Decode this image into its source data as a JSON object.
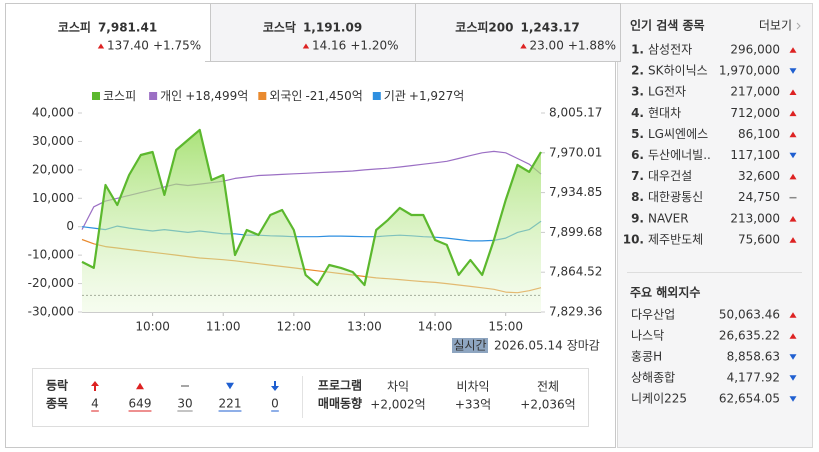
{
  "tabs": [
    {
      "name": "코스피",
      "value": "7,981.41",
      "change": "137.40",
      "rate": "+1.75%",
      "direction": "up",
      "active": true
    },
    {
      "name": "코스닥",
      "value": "1,191.09",
      "change": "14.16",
      "rate": "+1.20%",
      "direction": "up",
      "active": false
    },
    {
      "name": "코스피200",
      "value": "1,243.17",
      "change": "23.00",
      "rate": "+1.88%",
      "direction": "up",
      "active": false
    }
  ],
  "chart_data": {
    "type": "line",
    "x": [
      "09:00",
      "09:10",
      "09:20",
      "09:30",
      "09:40",
      "09:50",
      "10:00",
      "10:10",
      "10:20",
      "10:30",
      "10:40",
      "10:50",
      "11:00",
      "11:10",
      "11:20",
      "11:30",
      "11:40",
      "11:50",
      "12:00",
      "12:10",
      "12:20",
      "12:30",
      "12:40",
      "12:50",
      "13:00",
      "13:10",
      "13:20",
      "13:30",
      "13:40",
      "13:50",
      "14:00",
      "14:10",
      "14:20",
      "14:30",
      "14:40",
      "14:50",
      "15:00",
      "15:10",
      "15:20",
      "15:30"
    ],
    "xlim": [
      "09:00",
      "15:30"
    ],
    "xticks": [
      "10:00",
      "11:00",
      "12:00",
      "13:00",
      "14:00",
      "15:00"
    ],
    "ylim": [
      -30000,
      40000
    ],
    "yticks": [
      {
        "value": 40000,
        "label": "40,000"
      },
      {
        "value": 30000,
        "label": "30,000"
      },
      {
        "value": 20000,
        "label": "20,000"
      },
      {
        "value": 10000,
        "label": "10,000"
      },
      0,
      {
        "value": -10000,
        "label": "-10,000"
      },
      {
        "value": -20000,
        "label": "-20,000"
      },
      {
        "value": -30000,
        "label": "-30,000"
      }
    ],
    "y2lim": [
      7829.36,
      8005.17
    ],
    "y2ticks": [
      {
        "value": 8005.17,
        "label": "8,005.17"
      },
      {
        "value": 7970.01,
        "label": "7,970.01"
      },
      {
        "value": 7934.85,
        "label": "7,934.85"
      },
      {
        "value": 7899.68,
        "label": "7,899.68"
      },
      {
        "value": 7864.52,
        "label": "7,864.52"
      },
      {
        "value": 7829.36,
        "label": "7,829.36"
      }
    ],
    "y2_reference": 7844.01,
    "grid": false,
    "series": [
      {
        "name": "코스피",
        "color": "#5cb82e",
        "axis": "y2",
        "area": true,
        "values": [
          7873.6,
          7868.3,
          7941.6,
          7923.9,
          7950.4,
          7968.1,
          7970.7,
          7932.8,
          7972.5,
          7981.3,
          7990.2,
          7946.0,
          7950.4,
          7879.7,
          7901.8,
          7897.4,
          7915.1,
          7919.5,
          7901.8,
          7862.1,
          7853.2,
          7870.9,
          7868.3,
          7864.7,
          7853.2,
          7901.8,
          7910.7,
          7921.3,
          7915.1,
          7915.1,
          7893.0,
          7888.6,
          7862.1,
          7875.3,
          7862.1,
          7893.0,
          7928.3,
          7959.3,
          7953.1,
          7970.7
        ]
      },
      {
        "name": "개인",
        "legend_value": "+18,499억",
        "color": "#9b6fc4",
        "values": [
          -1000,
          7000,
          9000,
          10000,
          11000,
          12000,
          13000,
          14000,
          15000,
          14500,
          15000,
          15500,
          16000,
          17000,
          17500,
          18000,
          18200,
          18400,
          18600,
          18800,
          19000,
          19200,
          19400,
          19600,
          20000,
          20300,
          20600,
          21000,
          21500,
          22000,
          22500,
          23000,
          24000,
          25000,
          26000,
          26500,
          26000,
          24000,
          22000,
          18499
        ]
      },
      {
        "name": "외국인",
        "legend_value": "-21,450억",
        "color": "#e98a2e",
        "values": [
          -4500,
          -6000,
          -7000,
          -7500,
          -8000,
          -8500,
          -9000,
          -9500,
          -10000,
          -10500,
          -11000,
          -11300,
          -11600,
          -12000,
          -12500,
          -13000,
          -13500,
          -14000,
          -14500,
          -15000,
          -15500,
          -16000,
          -16500,
          -17000,
          -17500,
          -18000,
          -18300,
          -18600,
          -19000,
          -19300,
          -19600,
          -20000,
          -20500,
          -21000,
          -21500,
          -22000,
          -23000,
          -23200,
          -22500,
          -21450
        ]
      },
      {
        "name": "기관",
        "legend_value": "+1,927억",
        "color": "#2e8fe0",
        "values": [
          0,
          -500,
          -1000,
          200,
          -500,
          -1000,
          -1500,
          -1000,
          -1500,
          -2000,
          -1500,
          -2000,
          -2500,
          -2500,
          -3000,
          -3000,
          -3200,
          -3300,
          -3500,
          -3500,
          -3500,
          -3300,
          -3300,
          -3400,
          -3500,
          -3500,
          -3200,
          -3000,
          -3200,
          -3500,
          -3700,
          -4000,
          -4500,
          -5000,
          -5000,
          -4800,
          -4000,
          -2000,
          -1000,
          1927
        ]
      }
    ]
  },
  "status": {
    "badge": "실시간",
    "date": "2026.05.14",
    "state": "장마감"
  },
  "breadth": {
    "title_lines": [
      "등락",
      "종목"
    ],
    "items": [
      {
        "kind": "limit-up",
        "value": "4"
      },
      {
        "kind": "up",
        "value": "649"
      },
      {
        "kind": "flat",
        "value": "30"
      },
      {
        "kind": "down",
        "value": "221"
      },
      {
        "kind": "limit-down",
        "value": "0"
      }
    ]
  },
  "program": {
    "title_lines": [
      "프로그램",
      "매매동향"
    ],
    "items": [
      {
        "label": "차익",
        "value": "+2,002억"
      },
      {
        "label": "비차익",
        "value": "+33억"
      },
      {
        "label": "전체",
        "value": "+2,036억"
      }
    ]
  },
  "popular": {
    "title": "인기 검색 종목",
    "more": "더보기",
    "items": [
      {
        "rank": "1.",
        "name": "삼성전자",
        "price": "296,000",
        "direction": "up"
      },
      {
        "rank": "2.",
        "name": "SK하이닉스",
        "price": "1,970,000",
        "direction": "down"
      },
      {
        "rank": "3.",
        "name": "LG전자",
        "price": "217,000",
        "direction": "up"
      },
      {
        "rank": "4.",
        "name": "현대차",
        "price": "712,000",
        "direction": "up"
      },
      {
        "rank": "5.",
        "name": "LG씨엔에스",
        "price": "86,100",
        "direction": "up"
      },
      {
        "rank": "6.",
        "name": "두산에너빌..",
        "price": "117,100",
        "direction": "down"
      },
      {
        "rank": "7.",
        "name": "대우건설",
        "price": "32,600",
        "direction": "up"
      },
      {
        "rank": "8.",
        "name": "대한광통신",
        "price": "24,750",
        "direction": "flat"
      },
      {
        "rank": "9.",
        "name": "NAVER",
        "price": "213,000",
        "direction": "up"
      },
      {
        "rank": "10.",
        "name": "제주반도체",
        "price": "75,600",
        "direction": "up"
      }
    ]
  },
  "overseas": {
    "title": "주요 해외지수",
    "items": [
      {
        "name": "다우산업",
        "value": "50,063.46",
        "direction": "up"
      },
      {
        "name": "나스닥",
        "value": "26,635.22",
        "direction": "up"
      },
      {
        "name": "홍콩H",
        "value": "8,858.63",
        "direction": "down"
      },
      {
        "name": "상해종합",
        "value": "4,177.92",
        "direction": "down"
      },
      {
        "name": "니케이225",
        "value": "62,654.05",
        "direction": "down"
      }
    ]
  }
}
